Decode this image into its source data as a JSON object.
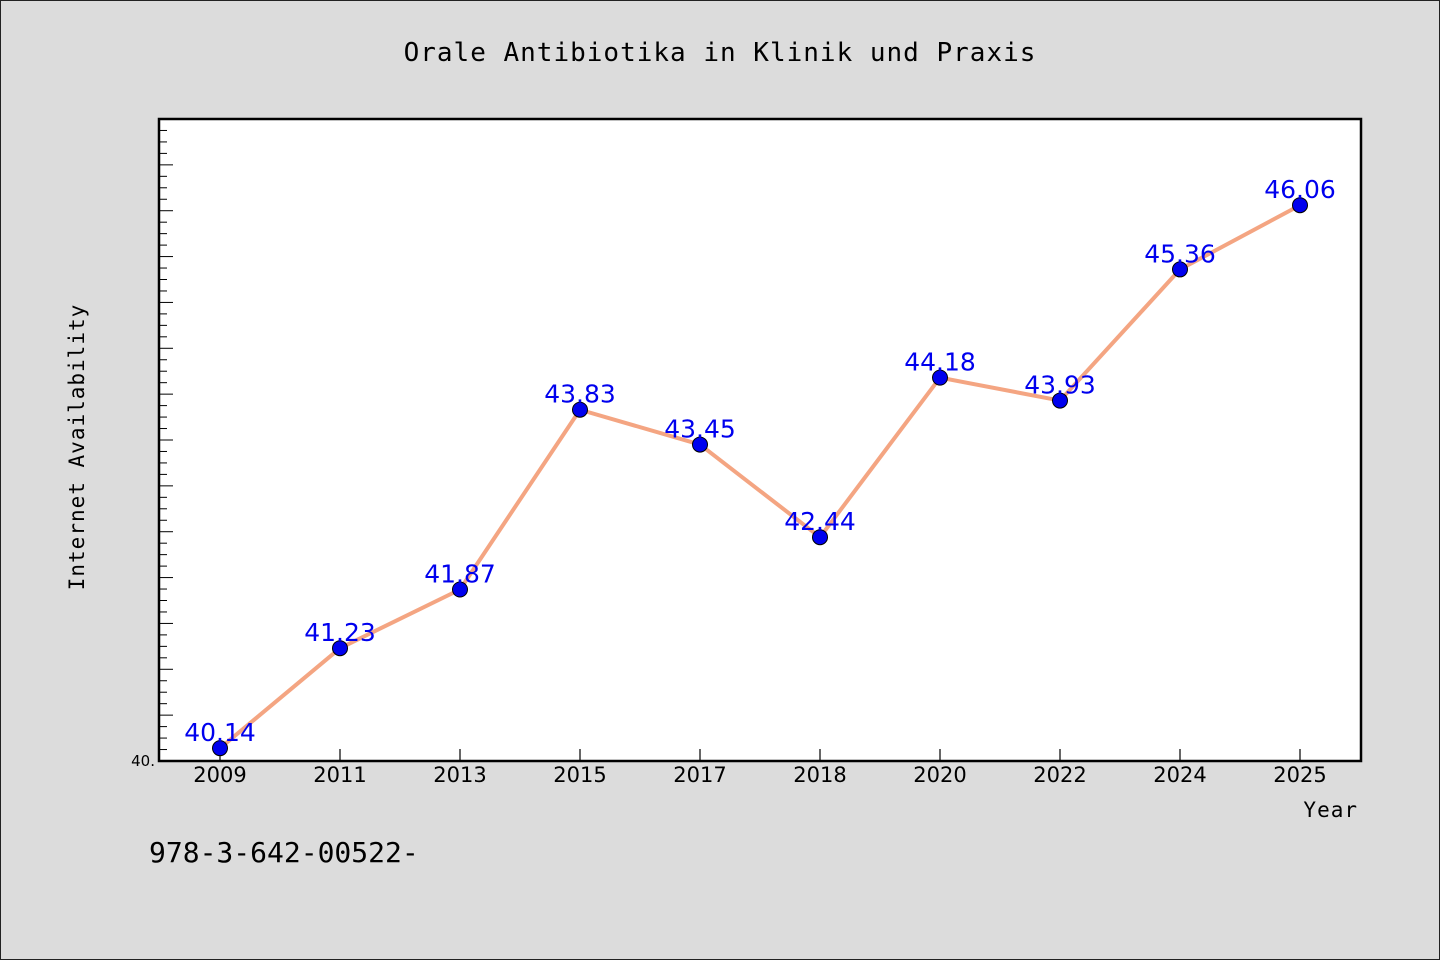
{
  "chart_data": {
    "type": "line",
    "title": "Orale Antibiotika in Klinik und Praxis",
    "xlabel": "Year",
    "ylabel": "Internet Availability",
    "categories": [
      "2009",
      "2011",
      "2013",
      "2015",
      "2017",
      "2018",
      "2020",
      "2022",
      "2024",
      "2025"
    ],
    "series": [
      {
        "values": [
          40.14,
          41.23,
          41.87,
          43.83,
          43.45,
          42.44,
          44.18,
          43.93,
          45.36,
          46.06
        ]
      }
    ],
    "data_labels": [
      "40.14",
      "41.23",
      "41.87",
      "43.83",
      "43.45",
      "42.44",
      "44.18",
      "43.93",
      "45.36",
      "46.06"
    ],
    "ylim": [
      40.0,
      47.0
    ],
    "ytick_label": "40.",
    "grid": false,
    "legend": "none",
    "colors": {
      "line": "#f4a582",
      "marker": "#0000ee",
      "data_label": "#0000ee",
      "background": "#dcdcdc",
      "plot_background": "#ffffff"
    }
  },
  "footer": {
    "text": "978-3-642-00522-"
  }
}
